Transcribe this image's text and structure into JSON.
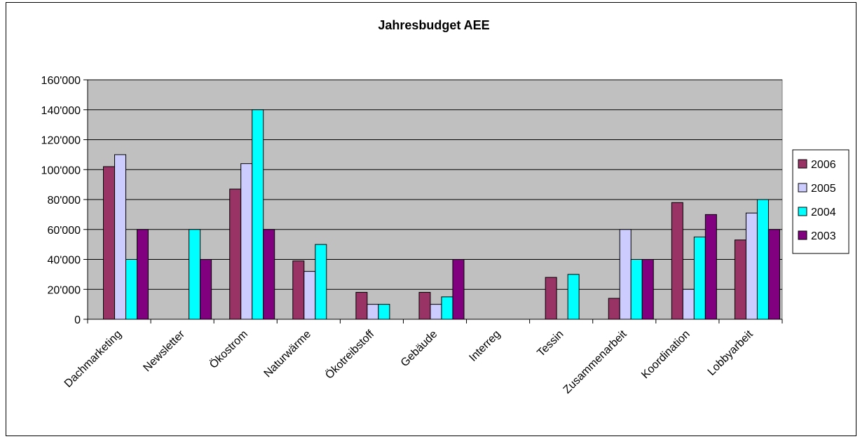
{
  "chart_data": {
    "type": "bar",
    "title": "Jahresbudget AEE",
    "xlabel": "",
    "ylabel": "",
    "ylim": [
      0,
      160000
    ],
    "yticks": [
      "0",
      "20'000",
      "40'000",
      "60'000",
      "80'000",
      "100'000",
      "120'000",
      "140'000",
      "160'000"
    ],
    "grid": true,
    "legend_position": "right",
    "plot_background": "#c0c0c0",
    "categories": [
      "Dachmarketing",
      "Newsletter",
      "Ökostrom",
      "Naturwärme",
      "Ökotreibstoff",
      "Gebäude",
      "Interreg",
      "Tessin",
      "Zusammenarbeit",
      "Koordination",
      "Lobbyarbeit"
    ],
    "series": [
      {
        "name": "2006",
        "color": "#993366",
        "values": [
          102000,
          0,
          87000,
          39000,
          18000,
          18000,
          0,
          28000,
          14000,
          78000,
          53000
        ]
      },
      {
        "name": "2005",
        "color": "#ccccff",
        "values": [
          110000,
          0,
          104000,
          32000,
          10000,
          10000,
          0,
          0,
          60000,
          20000,
          71000
        ]
      },
      {
        "name": "2004",
        "color": "#00ffff",
        "values": [
          40000,
          60000,
          140000,
          50000,
          10000,
          15000,
          0,
          30000,
          40000,
          55000,
          80000
        ]
      },
      {
        "name": "2003",
        "color": "#800080",
        "values": [
          60000,
          40000,
          60000,
          0,
          0,
          40000,
          0,
          0,
          40000,
          70000,
          60000
        ]
      }
    ]
  }
}
